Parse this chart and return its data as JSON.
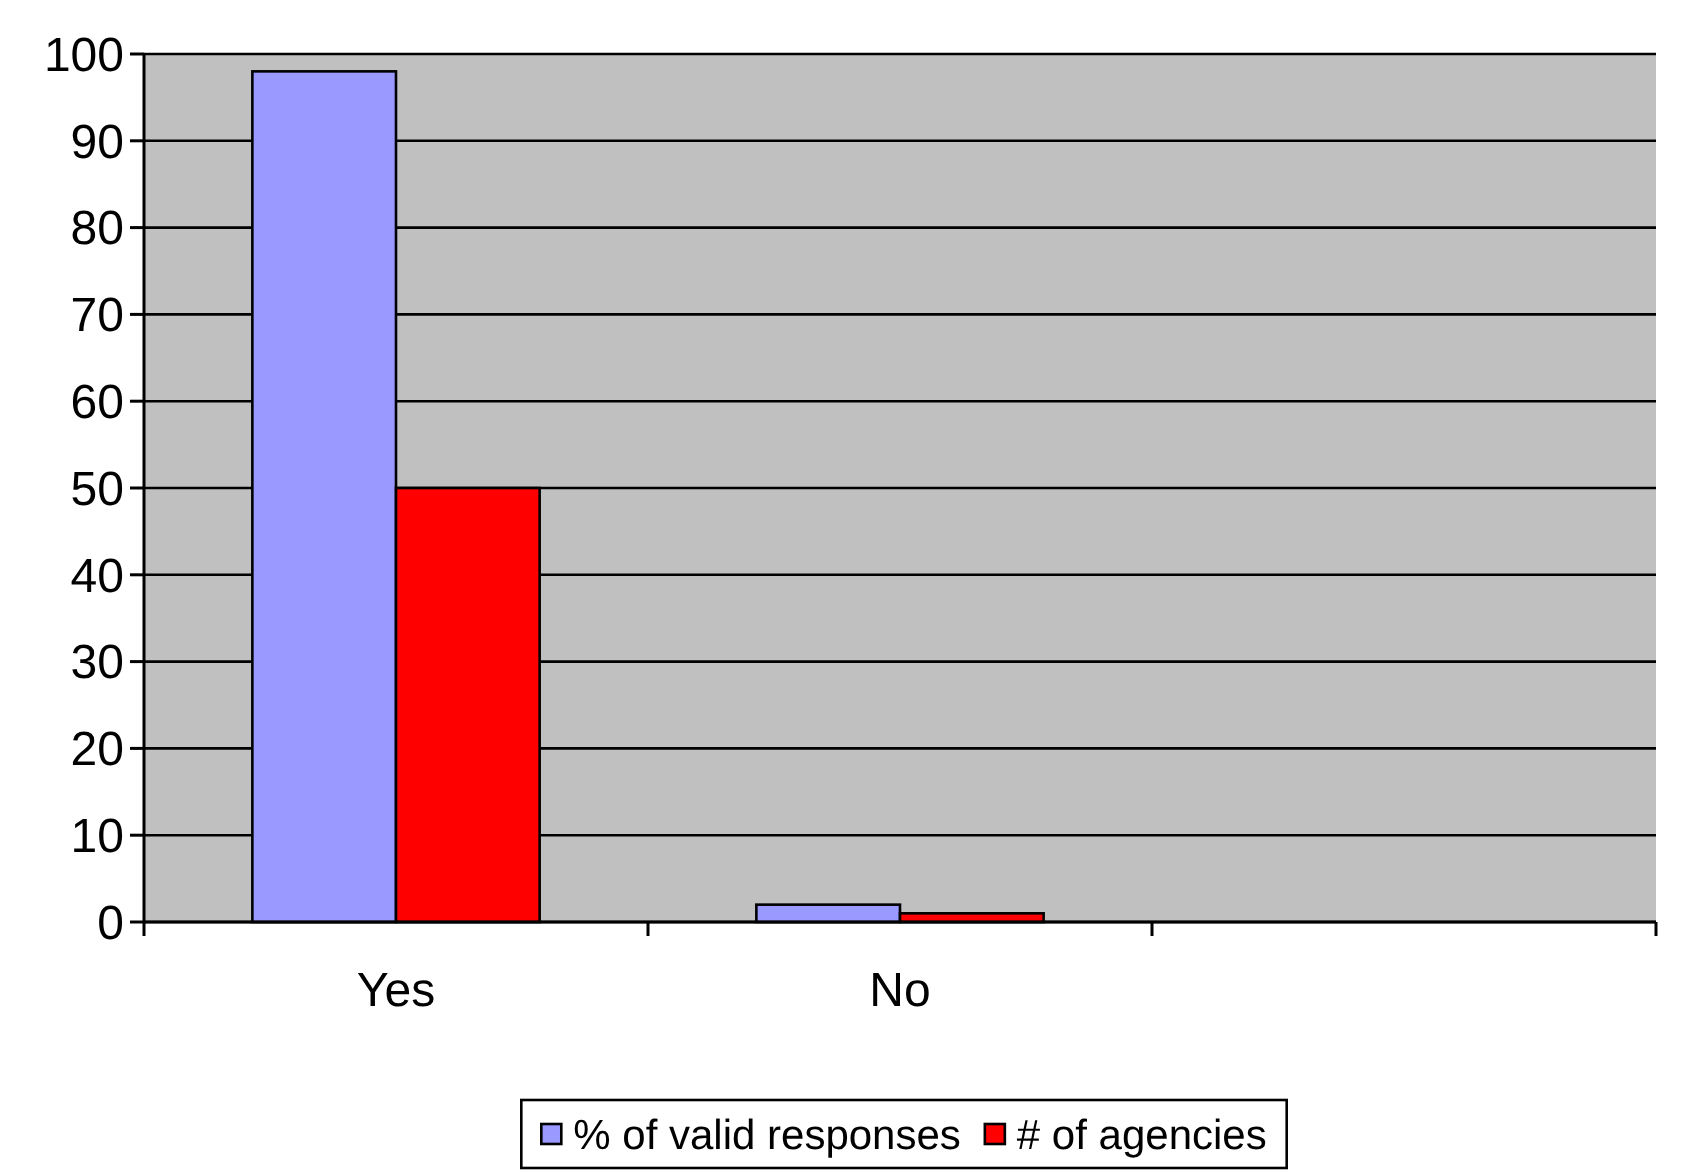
{
  "chart_data": {
    "type": "bar",
    "categories": [
      "Yes",
      "No",
      null
    ],
    "series": [
      {
        "name": "% of valid responses",
        "color": "#9999ff",
        "values": [
          98,
          2,
          null
        ]
      },
      {
        "name": "# of agencies",
        "color": "#ff0000",
        "values": [
          50,
          1,
          null
        ]
      }
    ],
    "ylim": [
      0,
      100
    ],
    "yticks": [
      0,
      10,
      20,
      30,
      40,
      50,
      60,
      70,
      80,
      90,
      100
    ],
    "grid": "y",
    "legend": "bottom"
  }
}
